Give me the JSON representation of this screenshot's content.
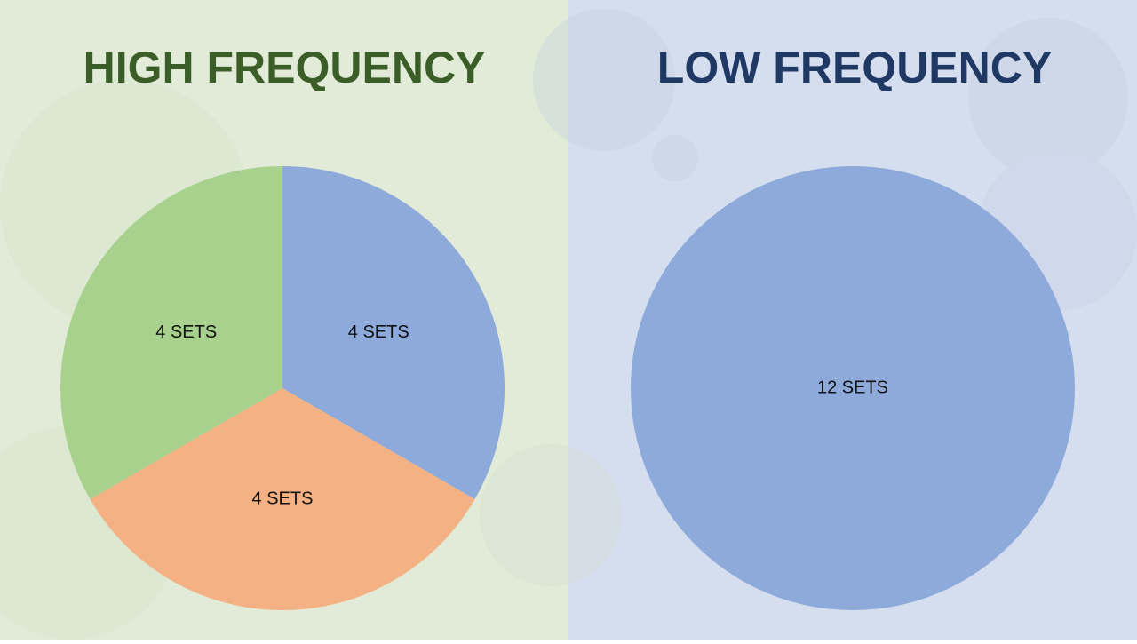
{
  "chart_data": [
    {
      "type": "pie",
      "title": "HIGH FREQUENCY",
      "title_color": "#3b5e29",
      "values": [
        4,
        4,
        4
      ],
      "value_labels": [
        "4 SETS",
        "4 SETS",
        "4 SETS"
      ],
      "colors": [
        "#8eaadb",
        "#f4b183",
        "#a9d18e"
      ]
    },
    {
      "type": "pie",
      "title": "LOW FREQUENCY",
      "title_color": "#1f3864",
      "values": [
        12
      ],
      "value_labels": [
        "12 SETS"
      ],
      "colors": [
        "#8eaadb"
      ]
    }
  ]
}
